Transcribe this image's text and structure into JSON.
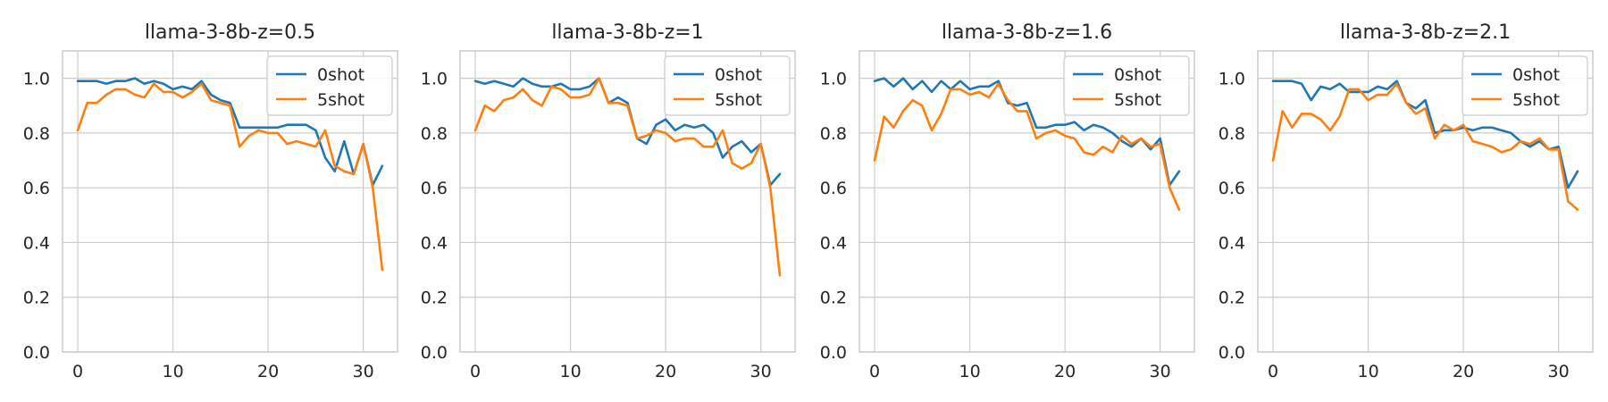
{
  "chart_data": [
    {
      "type": "line",
      "title": "llama-3-8b-z=0.5",
      "xlabel": "",
      "ylabel": "",
      "xlim": [
        -1.6,
        33.6
      ],
      "ylim": [
        0.0,
        1.1
      ],
      "xticks": [
        0,
        10,
        20,
        30
      ],
      "yticks": [
        0.0,
        0.2,
        0.4,
        0.6,
        0.8,
        1.0
      ],
      "grid": true,
      "legend_position": "top-right",
      "x": [
        0,
        1,
        2,
        3,
        4,
        5,
        6,
        7,
        8,
        9,
        10,
        11,
        12,
        13,
        14,
        15,
        16,
        17,
        18,
        19,
        20,
        21,
        22,
        23,
        24,
        25,
        26,
        27,
        28,
        29,
        30,
        31,
        32
      ],
      "series": [
        {
          "name": "0shot",
          "color": "#1f77b4",
          "values": [
            0.99,
            0.99,
            0.99,
            0.98,
            0.99,
            0.99,
            1.0,
            0.98,
            0.99,
            0.98,
            0.96,
            0.97,
            0.96,
            0.99,
            0.94,
            0.92,
            0.91,
            0.82,
            0.82,
            0.82,
            0.82,
            0.82,
            0.83,
            0.83,
            0.83,
            0.81,
            0.71,
            0.66,
            0.77,
            0.65,
            0.76,
            0.61,
            0.68
          ]
        },
        {
          "name": "5shot",
          "color": "#ff7f0e",
          "values": [
            0.81,
            0.91,
            0.91,
            0.94,
            0.96,
            0.96,
            0.94,
            0.93,
            0.98,
            0.95,
            0.95,
            0.93,
            0.95,
            0.98,
            0.92,
            0.91,
            0.9,
            0.75,
            0.79,
            0.81,
            0.8,
            0.8,
            0.76,
            0.77,
            0.76,
            0.75,
            0.81,
            0.68,
            0.66,
            0.65,
            0.76,
            0.6,
            0.3
          ]
        }
      ]
    },
    {
      "type": "line",
      "title": "llama-3-8b-z=1",
      "xlabel": "",
      "ylabel": "",
      "xlim": [
        -1.6,
        33.6
      ],
      "ylim": [
        0.0,
        1.1
      ],
      "xticks": [
        0,
        10,
        20,
        30
      ],
      "yticks": [
        0.0,
        0.2,
        0.4,
        0.6,
        0.8,
        1.0
      ],
      "grid": true,
      "legend_position": "top-right",
      "x": [
        0,
        1,
        2,
        3,
        4,
        5,
        6,
        7,
        8,
        9,
        10,
        11,
        12,
        13,
        14,
        15,
        16,
        17,
        18,
        19,
        20,
        21,
        22,
        23,
        24,
        25,
        26,
        27,
        28,
        29,
        30,
        31,
        32
      ],
      "series": [
        {
          "name": "0shot",
          "color": "#1f77b4",
          "values": [
            0.99,
            0.98,
            0.99,
            0.98,
            0.97,
            1.0,
            0.98,
            0.97,
            0.97,
            0.98,
            0.96,
            0.96,
            0.97,
            1.0,
            0.91,
            0.93,
            0.91,
            0.78,
            0.76,
            0.83,
            0.85,
            0.81,
            0.83,
            0.82,
            0.83,
            0.8,
            0.71,
            0.75,
            0.77,
            0.73,
            0.76,
            0.61,
            0.65
          ]
        },
        {
          "name": "5shot",
          "color": "#ff7f0e",
          "values": [
            0.81,
            0.9,
            0.88,
            0.92,
            0.93,
            0.96,
            0.92,
            0.9,
            0.97,
            0.96,
            0.93,
            0.93,
            0.94,
            1.0,
            0.91,
            0.91,
            0.9,
            0.78,
            0.79,
            0.81,
            0.8,
            0.77,
            0.78,
            0.78,
            0.75,
            0.75,
            0.81,
            0.69,
            0.67,
            0.69,
            0.76,
            0.6,
            0.28
          ]
        }
      ]
    },
    {
      "type": "line",
      "title": "llama-3-8b-z=1.6",
      "xlabel": "",
      "ylabel": "",
      "xlim": [
        -1.6,
        33.6
      ],
      "ylim": [
        0.0,
        1.1
      ],
      "xticks": [
        0,
        10,
        20,
        30
      ],
      "yticks": [
        0.0,
        0.2,
        0.4,
        0.6,
        0.8,
        1.0
      ],
      "grid": true,
      "legend_position": "top-right",
      "x": [
        0,
        1,
        2,
        3,
        4,
        5,
        6,
        7,
        8,
        9,
        10,
        11,
        12,
        13,
        14,
        15,
        16,
        17,
        18,
        19,
        20,
        21,
        22,
        23,
        24,
        25,
        26,
        27,
        28,
        29,
        30,
        31,
        32
      ],
      "series": [
        {
          "name": "0shot",
          "color": "#1f77b4",
          "values": [
            0.99,
            1.0,
            0.97,
            1.0,
            0.96,
            0.99,
            0.95,
            0.99,
            0.96,
            0.99,
            0.96,
            0.97,
            0.97,
            0.99,
            0.91,
            0.9,
            0.91,
            0.82,
            0.82,
            0.83,
            0.83,
            0.84,
            0.81,
            0.83,
            0.82,
            0.8,
            0.77,
            0.75,
            0.78,
            0.74,
            0.78,
            0.61,
            0.66
          ]
        },
        {
          "name": "5shot",
          "color": "#ff7f0e",
          "values": [
            0.7,
            0.86,
            0.82,
            0.88,
            0.92,
            0.9,
            0.81,
            0.87,
            0.96,
            0.96,
            0.94,
            0.95,
            0.93,
            0.98,
            0.92,
            0.88,
            0.88,
            0.78,
            0.8,
            0.81,
            0.79,
            0.78,
            0.73,
            0.72,
            0.75,
            0.73,
            0.79,
            0.76,
            0.78,
            0.75,
            0.76,
            0.6,
            0.52
          ]
        }
      ]
    },
    {
      "type": "line",
      "title": "llama-3-8b-z=2.1",
      "xlabel": "",
      "ylabel": "",
      "xlim": [
        -1.6,
        33.6
      ],
      "ylim": [
        0.0,
        1.1
      ],
      "xticks": [
        0,
        10,
        20,
        30
      ],
      "yticks": [
        0.0,
        0.2,
        0.4,
        0.6,
        0.8,
        1.0
      ],
      "grid": true,
      "legend_position": "top-right",
      "x": [
        0,
        1,
        2,
        3,
        4,
        5,
        6,
        7,
        8,
        9,
        10,
        11,
        12,
        13,
        14,
        15,
        16,
        17,
        18,
        19,
        20,
        21,
        22,
        23,
        24,
        25,
        26,
        27,
        28,
        29,
        30,
        31,
        32
      ],
      "series": [
        {
          "name": "0shot",
          "color": "#1f77b4",
          "values": [
            0.99,
            0.99,
            0.99,
            0.98,
            0.92,
            0.97,
            0.96,
            0.98,
            0.95,
            0.95,
            0.95,
            0.97,
            0.96,
            0.99,
            0.91,
            0.89,
            0.92,
            0.8,
            0.81,
            0.81,
            0.82,
            0.81,
            0.82,
            0.82,
            0.81,
            0.8,
            0.77,
            0.75,
            0.77,
            0.74,
            0.75,
            0.6,
            0.66
          ]
        },
        {
          "name": "5shot",
          "color": "#ff7f0e",
          "values": [
            0.7,
            0.88,
            0.82,
            0.87,
            0.87,
            0.85,
            0.81,
            0.86,
            0.96,
            0.96,
            0.92,
            0.94,
            0.94,
            0.98,
            0.91,
            0.87,
            0.89,
            0.78,
            0.83,
            0.81,
            0.83,
            0.77,
            0.76,
            0.75,
            0.73,
            0.74,
            0.77,
            0.76,
            0.78,
            0.74,
            0.74,
            0.55,
            0.52
          ]
        }
      ]
    }
  ]
}
